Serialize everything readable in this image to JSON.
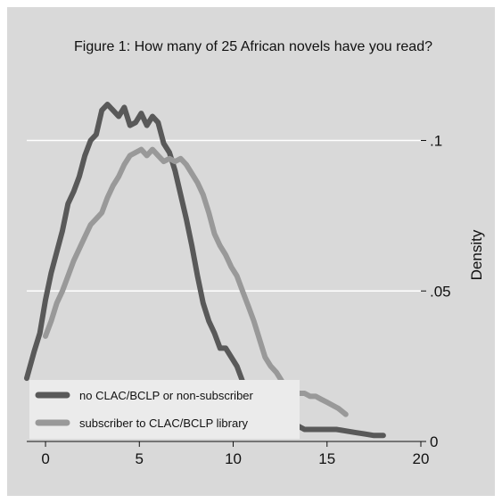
{
  "chart_data": {
    "type": "line",
    "title": "Figure 1: How many of 25 African novels have you read?",
    "xlabel": "",
    "ylabel": "Density",
    "xlim": [
      -1,
      20
    ],
    "ylim": [
      0,
      0.12
    ],
    "x_ticks": [
      0,
      5,
      10,
      15,
      20
    ],
    "x_tick_labels": [
      "0",
      "5",
      "10",
      "15",
      "20"
    ],
    "y_ticks": [
      0,
      0.05,
      0.1
    ],
    "y_tick_labels": [
      "0",
      ".05",
      ".1"
    ],
    "y_axis_position": "right",
    "grid": true,
    "legend_position": "bottom-left",
    "background": "#d9d9d9",
    "plot_background": "#d9d9d9",
    "series": [
      {
        "name": "no CLAC/BCLP or non-subscriber",
        "color": "#595959",
        "x": [
          -1,
          -0.6,
          -0.3,
          0,
          0.3,
          0.6,
          0.9,
          1.2,
          1.5,
          1.8,
          2.1,
          2.4,
          2.7,
          3,
          3.3,
          3.6,
          3.9,
          4.2,
          4.5,
          4.8,
          5.1,
          5.4,
          5.7,
          6,
          6.3,
          6.6,
          6.9,
          7.2,
          7.5,
          7.8,
          8.1,
          8.4,
          8.7,
          9,
          9.3,
          9.6,
          9.9,
          10.2,
          10.5,
          10.8,
          11.1,
          11.4,
          11.7,
          12,
          12.3,
          12.6,
          12.9,
          13.2,
          13.5,
          13.8,
          14.1,
          14.4,
          14.7,
          15,
          15.5,
          16,
          16.5,
          17,
          17.5,
          18
        ],
        "values": [
          0.021,
          0.03,
          0.036,
          0.047,
          0.056,
          0.063,
          0.07,
          0.079,
          0.083,
          0.088,
          0.095,
          0.1,
          0.102,
          0.11,
          0.112,
          0.11,
          0.108,
          0.111,
          0.105,
          0.106,
          0.109,
          0.105,
          0.108,
          0.106,
          0.099,
          0.096,
          0.09,
          0.082,
          0.074,
          0.065,
          0.055,
          0.046,
          0.04,
          0.036,
          0.031,
          0.031,
          0.028,
          0.025,
          0.02,
          0.017,
          0.014,
          0.012,
          0.01,
          0.009,
          0.008,
          0.007,
          0.006,
          0.006,
          0.005,
          0.004,
          0.004,
          0.004,
          0.004,
          0.004,
          0.004,
          0.0035,
          0.003,
          0.0025,
          0.002,
          0.002
        ]
      },
      {
        "name": "subscriber to CLAC/BCLP library",
        "color": "#999999",
        "x": [
          0,
          0.3,
          0.6,
          0.9,
          1.2,
          1.5,
          1.8,
          2.1,
          2.4,
          2.7,
          3,
          3.3,
          3.6,
          3.9,
          4.2,
          4.5,
          4.8,
          5.1,
          5.4,
          5.7,
          6,
          6.3,
          6.6,
          6.9,
          7.2,
          7.5,
          7.8,
          8.1,
          8.4,
          8.7,
          9,
          9.3,
          9.6,
          9.9,
          10.2,
          10.5,
          10.8,
          11.1,
          11.4,
          11.7,
          12,
          12.3,
          12.6,
          12.9,
          13.2,
          13.5,
          13.8,
          14.1,
          14.4,
          14.7,
          15,
          15.3,
          15.6,
          16
        ],
        "values": [
          0.035,
          0.04,
          0.046,
          0.05,
          0.055,
          0.06,
          0.064,
          0.068,
          0.072,
          0.074,
          0.076,
          0.081,
          0.085,
          0.088,
          0.092,
          0.095,
          0.096,
          0.097,
          0.095,
          0.097,
          0.095,
          0.093,
          0.094,
          0.093,
          0.094,
          0.092,
          0.089,
          0.086,
          0.082,
          0.076,
          0.069,
          0.065,
          0.062,
          0.058,
          0.055,
          0.05,
          0.045,
          0.04,
          0.034,
          0.028,
          0.025,
          0.023,
          0.02,
          0.018,
          0.016,
          0.016,
          0.016,
          0.015,
          0.015,
          0.014,
          0.013,
          0.012,
          0.011,
          0.009
        ]
      }
    ]
  }
}
